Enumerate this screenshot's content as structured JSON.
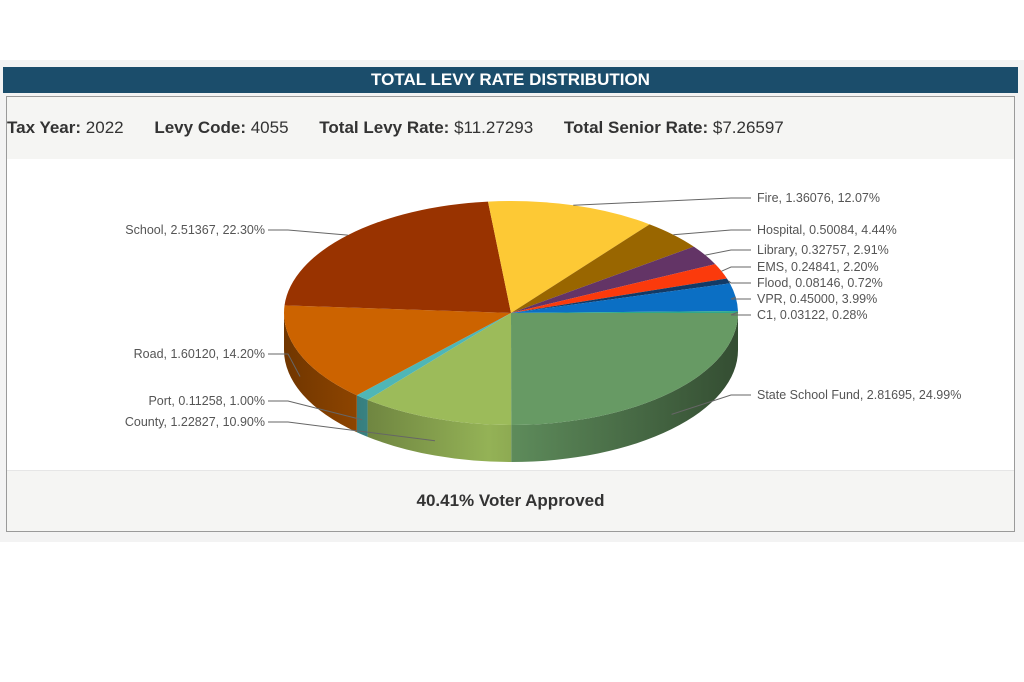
{
  "header": {
    "title": "TOTAL LEVY RATE DISTRIBUTION"
  },
  "info": {
    "tax_year_label": "Tax Year:",
    "tax_year": "2022",
    "levy_code_label": "Levy Code:",
    "levy_code": "4055",
    "total_levy_label": "Total Levy Rate:",
    "total_levy": "$11.27293",
    "senior_label": "Total Senior Rate:",
    "senior": "$7.26597"
  },
  "footer": {
    "text": "40.41% Voter Approved"
  },
  "chart_data": {
    "type": "pie",
    "title": "TOTAL LEVY RATE DISTRIBUTION",
    "slices": [
      {
        "name": "State School Fund",
        "value": 2.81695,
        "percent": 24.99,
        "color": "#679a64",
        "label": "State School Fund, 2.81695, 24.99%"
      },
      {
        "name": "County",
        "value": 1.22827,
        "percent": 10.9,
        "color": "#9cbb5a",
        "label": "County, 1.22827, 10.90%"
      },
      {
        "name": "Port",
        "value": 0.11258,
        "percent": 1.0,
        "color": "#4fb6b6",
        "label": "Port, 0.11258, 1.00%"
      },
      {
        "name": "Road",
        "value": 1.6012,
        "percent": 14.2,
        "color": "#cc6300",
        "label": "Road, 1.60120, 14.20%"
      },
      {
        "name": "School",
        "value": 2.51367,
        "percent": 22.3,
        "color": "#993300",
        "label": "School, 2.51367, 22.30%"
      },
      {
        "name": "Fire",
        "value": 1.36076,
        "percent": 12.07,
        "color": "#fdc935",
        "label": "Fire, 1.36076, 12.07%"
      },
      {
        "name": "Hospital",
        "value": 0.50084,
        "percent": 4.44,
        "color": "#996600",
        "label": "Hospital, 0.50084, 4.44%"
      },
      {
        "name": "Library",
        "value": 0.32757,
        "percent": 2.91,
        "color": "#633466",
        "label": "Library, 0.32757, 2.91%"
      },
      {
        "name": "EMS",
        "value": 0.24841,
        "percent": 2.2,
        "color": "#fb3a0c",
        "label": "EMS, 0.24841, 2.20%"
      },
      {
        "name": "Flood",
        "value": 0.08146,
        "percent": 0.72,
        "color": "#123a66",
        "label": "Flood, 0.08146, 0.72%"
      },
      {
        "name": "VPR",
        "value": 0.45,
        "percent": 3.99,
        "color": "#0b6fc4",
        "label": "VPR, 0.45000, 3.99%"
      },
      {
        "name": "C1",
        "value": 0.03122,
        "percent": 0.28,
        "color": "#2fa88a",
        "label": "C1, 0.03122, 0.28%"
      }
    ]
  }
}
